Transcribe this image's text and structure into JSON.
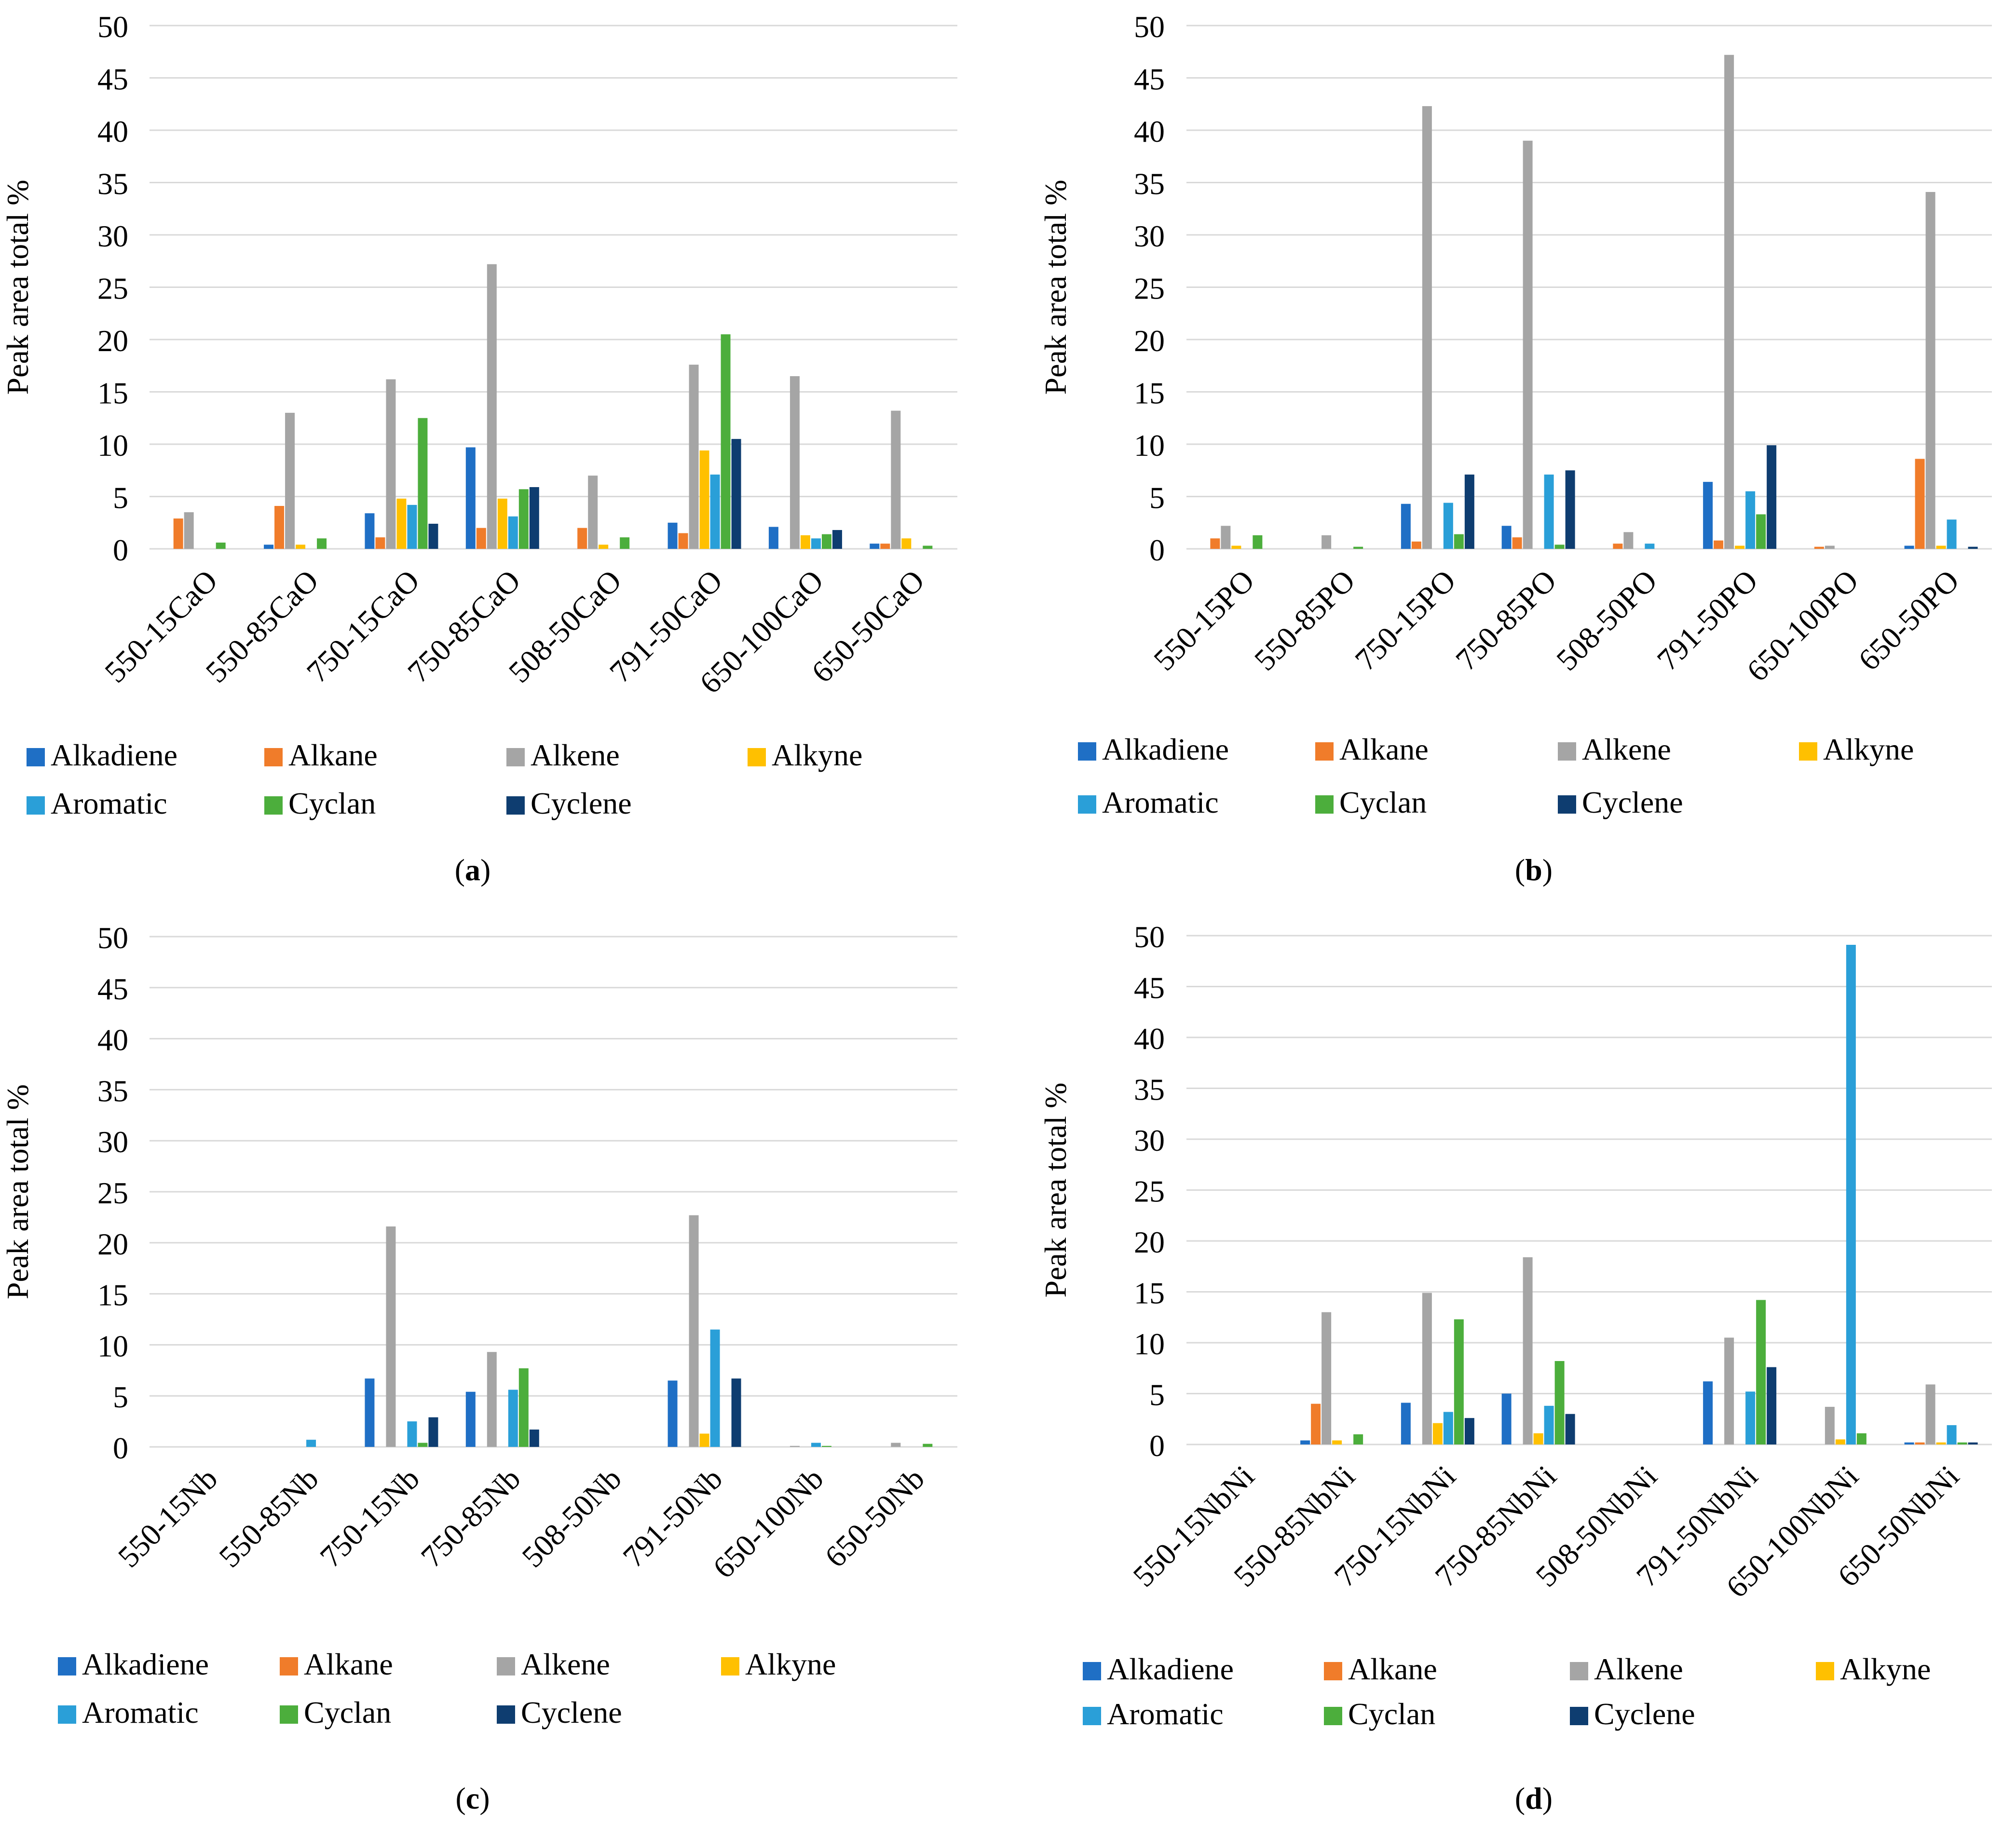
{
  "figure": {
    "colors": {
      "Alkadiene": "#1f6fc5",
      "Alkane": "#f07c2a",
      "Alkene": "#a5a5a5",
      "Alkyne": "#ffc000",
      "Aromatic": "#2a9fd8",
      "Cyclan": "#4cae3c",
      "Cyclene": "#0e3d70"
    }
  },
  "chart_data": [
    {
      "type": "bar",
      "panel_label": "a",
      "ylabel": "Peak area total %",
      "ylim": [
        0,
        50
      ],
      "yticks": [
        0,
        5,
        10,
        15,
        20,
        25,
        30,
        35,
        40,
        45,
        50
      ],
      "grid": true,
      "legend_position": "bottom",
      "categories": [
        "550-15CaO",
        "550-85CaO",
        "750-15CaO",
        "750-85CaO",
        "508-50CaO",
        "791-50CaO",
        "650-100CaO",
        "650-50CaO"
      ],
      "series": [
        {
          "name": "Alkadiene",
          "values": [
            0,
            0.4,
            3.4,
            9.7,
            0,
            2.5,
            2.1,
            0.5
          ]
        },
        {
          "name": "Alkane",
          "values": [
            2.9,
            4.1,
            1.1,
            2.0,
            2.0,
            1.5,
            0,
            0.5
          ]
        },
        {
          "name": "Alkene",
          "values": [
            3.5,
            13.0,
            16.2,
            27.2,
            7.0,
            17.6,
            16.5,
            13.2
          ]
        },
        {
          "name": "Alkyne",
          "values": [
            0,
            0.4,
            4.8,
            4.8,
            0.4,
            9.4,
            1.3,
            1.0
          ]
        },
        {
          "name": "Aromatic",
          "values": [
            0,
            0,
            4.2,
            3.1,
            0,
            7.1,
            1.0,
            0
          ]
        },
        {
          "name": "Cyclan",
          "values": [
            0.6,
            1.0,
            12.5,
            5.7,
            1.1,
            20.5,
            1.4,
            0.3
          ]
        },
        {
          "name": "Cyclene",
          "values": [
            0,
            0,
            2.4,
            5.9,
            0,
            10.5,
            1.8,
            0
          ]
        }
      ]
    },
    {
      "type": "bar",
      "panel_label": "b",
      "ylabel": "Peak area total %",
      "ylim": [
        0,
        50
      ],
      "yticks": [
        0,
        5,
        10,
        15,
        20,
        25,
        30,
        35,
        40,
        45,
        50
      ],
      "grid": true,
      "legend_position": "bottom",
      "categories": [
        "550-15PO",
        "550-85PO",
        "750-15PO",
        "750-85PO",
        "508-50PO",
        "791-50PO",
        "650-100PO",
        "650-50PO"
      ],
      "series": [
        {
          "name": "Alkadiene",
          "values": [
            0,
            0,
            4.3,
            2.2,
            0,
            6.4,
            0,
            0.3
          ]
        },
        {
          "name": "Alkane",
          "values": [
            1.0,
            0,
            0.7,
            1.1,
            0.5,
            0.8,
            0.2,
            8.6
          ]
        },
        {
          "name": "Alkene",
          "values": [
            2.2,
            1.3,
            42.3,
            39.0,
            1.6,
            47.2,
            0.3,
            34.1
          ]
        },
        {
          "name": "Alkyne",
          "values": [
            0.3,
            0,
            0,
            0,
            0,
            0.3,
            0,
            0.3
          ]
        },
        {
          "name": "Aromatic",
          "values": [
            0,
            0,
            4.4,
            7.1,
            0.5,
            5.5,
            0,
            2.8
          ]
        },
        {
          "name": "Cyclan",
          "values": [
            1.3,
            0.2,
            1.4,
            0.4,
            0,
            3.3,
            0,
            0
          ]
        },
        {
          "name": "Cyclene",
          "values": [
            0,
            0,
            7.1,
            7.5,
            0,
            9.9,
            0,
            0.2
          ]
        }
      ]
    },
    {
      "type": "bar",
      "panel_label": "c",
      "ylabel": "Peak area total %",
      "ylim": [
        0,
        50
      ],
      "yticks": [
        0,
        5,
        10,
        15,
        20,
        25,
        30,
        35,
        40,
        45,
        50
      ],
      "grid": true,
      "legend_position": "bottom",
      "categories": [
        "550-15Nb",
        "550-85Nb",
        "750-15Nb",
        "750-85Nb",
        "508-50Nb",
        "791-50Nb",
        "650-100Nb",
        "650-50Nb"
      ],
      "series": [
        {
          "name": "Alkadiene",
          "values": [
            0,
            0,
            6.7,
            5.4,
            0,
            6.5,
            0,
            0
          ]
        },
        {
          "name": "Alkane",
          "values": [
            0,
            0,
            0,
            0,
            0,
            0,
            0,
            0
          ]
        },
        {
          "name": "Alkene",
          "values": [
            0,
            0,
            21.6,
            9.3,
            0,
            22.7,
            0.1,
            0.4
          ]
        },
        {
          "name": "Alkyne",
          "values": [
            0,
            0,
            0,
            0,
            0,
            1.3,
            0,
            0
          ]
        },
        {
          "name": "Aromatic",
          "values": [
            0,
            0.7,
            2.5,
            5.6,
            0,
            11.5,
            0.4,
            0
          ]
        },
        {
          "name": "Cyclan",
          "values": [
            0,
            0,
            0.4,
            7.7,
            0,
            0,
            0.1,
            0.3
          ]
        },
        {
          "name": "Cyclene",
          "values": [
            0,
            0,
            2.9,
            1.7,
            0,
            6.7,
            0,
            0
          ]
        }
      ]
    },
    {
      "type": "bar",
      "panel_label": "d",
      "ylabel": "Peak area total %",
      "ylim": [
        0,
        50
      ],
      "yticks": [
        0,
        5,
        10,
        15,
        20,
        25,
        30,
        35,
        40,
        45,
        50
      ],
      "grid": true,
      "legend_position": "bottom",
      "categories": [
        "550-15NbNi",
        "550-85NbNi",
        "750-15NbNi",
        "750-85NbNi",
        "508-50NbNi",
        "791-50NbNi",
        "650-100NbNi",
        "650-50NbNi"
      ],
      "series": [
        {
          "name": "Alkadiene",
          "values": [
            0,
            0.4,
            4.1,
            5.0,
            0,
            6.2,
            0,
            0.2
          ]
        },
        {
          "name": "Alkane",
          "values": [
            0,
            4.0,
            0,
            0,
            0,
            0,
            0,
            0.2
          ]
        },
        {
          "name": "Alkene",
          "values": [
            0,
            13.0,
            14.9,
            18.4,
            0,
            10.5,
            3.7,
            5.9
          ]
        },
        {
          "name": "Alkyne",
          "values": [
            0,
            0.4,
            2.1,
            1.1,
            0,
            0,
            0.5,
            0.2
          ]
        },
        {
          "name": "Aromatic",
          "values": [
            0,
            0,
            3.2,
            3.8,
            0,
            5.2,
            49.1,
            1.9
          ]
        },
        {
          "name": "Cyclan",
          "values": [
            0,
            1.0,
            12.3,
            8.2,
            0,
            14.2,
            1.1,
            0.2
          ]
        },
        {
          "name": "Cyclene",
          "values": [
            0,
            0,
            2.6,
            3.0,
            0,
            7.6,
            0,
            0.2
          ]
        }
      ]
    }
  ]
}
